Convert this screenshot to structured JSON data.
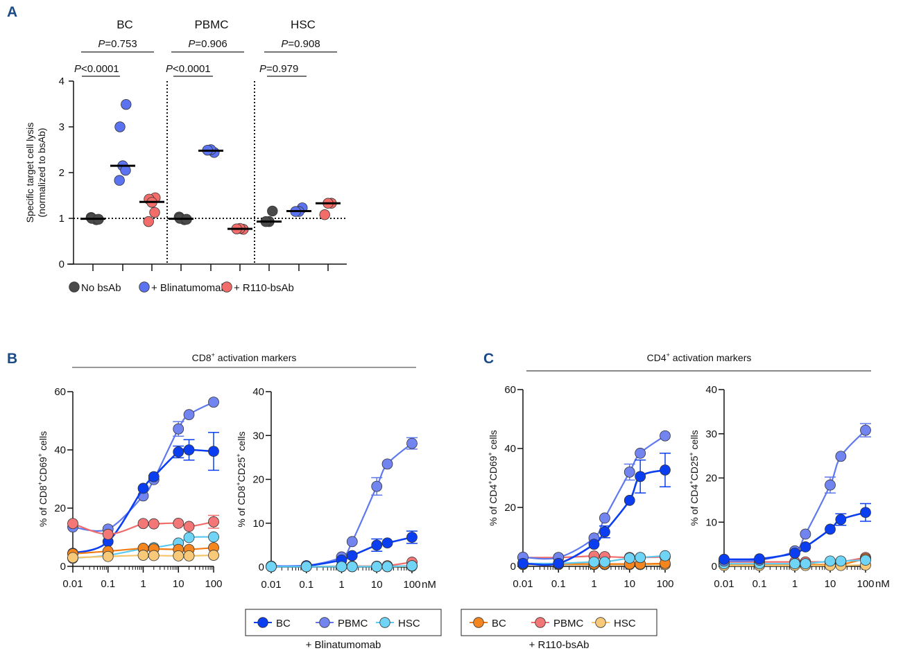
{
  "figure": {
    "panel_labels": [
      "A",
      "B",
      "C"
    ]
  },
  "chart_data": [
    {
      "panel": "A",
      "type": "scatter",
      "subtype": "dot-plot-with-median",
      "ylabel_line1": "Specific target cell lysis",
      "ylabel_line2": "(normalized to bsAb)",
      "ylim": [
        0,
        4
      ],
      "yticks": [
        "0",
        "1",
        "2",
        "3",
        "4"
      ],
      "reference_line": 1,
      "groups": [
        {
          "title": "BC",
          "p_top": {
            "label": "P",
            "value": "=0.753"
          },
          "p_bottom": {
            "label": "P",
            "value": "<0.0001"
          },
          "conditions": [
            {
              "name": "No bsAb",
              "points": [
                0.97,
                1.02,
                1.0,
                0.98
              ],
              "median": 0.99
            },
            {
              "name": "+ Blinatumomab",
              "points": [
                3.49,
                3.0,
                2.15,
                2.05,
                1.83
              ],
              "median": 2.15
            },
            {
              "name": "+ R110-bsAb",
              "points": [
                1.45,
                1.42,
                1.35,
                1.13,
                0.93
              ],
              "median": 1.36
            }
          ]
        },
        {
          "title": "PBMC",
          "p_top": {
            "label": "P",
            "value": "=0.906"
          },
          "p_bottom": {
            "label": "P",
            "value": "<0.0001"
          },
          "conditions": [
            {
              "name": "No bsAb",
              "points": [
                0.97,
                1.03,
                1.0,
                0.98
              ],
              "median": 0.99
            },
            {
              "name": "+ Blinatumomab",
              "points": [
                2.44,
                2.5,
                2.49
              ],
              "median": 2.48
            },
            {
              "name": "+ R110-bsAb",
              "points": [
                0.76,
                0.78,
                0.77
              ],
              "median": 0.77
            }
          ]
        },
        {
          "title": "HSC",
          "p_top": {
            "label": "P",
            "value": "=0.908"
          },
          "p_bottom": {
            "label": "P",
            "value": "=0.979"
          },
          "conditions": [
            {
              "name": "No bsAb",
              "points": [
                1.16,
                0.93,
                0.93
              ],
              "median": 0.93
            },
            {
              "name": "+ Blinatumomab",
              "points": [
                1.23,
                1.15,
                1.15
              ],
              "median": 1.16
            },
            {
              "name": "+ R110-bsAb",
              "points": [
                1.33,
                1.33,
                1.08
              ],
              "median": 1.33
            }
          ]
        }
      ],
      "legend": [
        {
          "name": "No bsAb",
          "color": "#4a4a4a"
        },
        {
          "name": "+ Blinatumomab",
          "color": "#5b73f0"
        },
        {
          "name": "+ R110-bsAb",
          "color": "#f26d6a"
        }
      ],
      "legend_position": "bottom"
    },
    {
      "panel": "B",
      "header": {
        "prefix": "CD8",
        "sup": "+",
        "suffix": " activation markers"
      },
      "charts": [
        {
          "type": "line",
          "xscale": "log",
          "x": [
            0.01,
            0.1,
            1,
            2,
            10,
            20,
            100
          ],
          "xticks": [
            "0.01",
            "0.1",
            "1",
            "10",
            "100"
          ],
          "xunit": "",
          "ylabel_parts": [
            "% of CD8",
            "+",
            "CD69",
            "+",
            " cells"
          ],
          "ylim": [
            0,
            60
          ],
          "yticks": [
            "0",
            "20",
            "40",
            "60"
          ],
          "series": [
            {
              "key": "blin_pbmc",
              "values": [
                13.5,
                12.8,
                24.2,
                29.8,
                47.2,
                52.1,
                56.4
              ],
              "err": [
                0,
                0,
                0,
                0,
                2.5,
                0,
                0
              ]
            },
            {
              "key": "blin_bc",
              "values": [
                4.5,
                8.5,
                26.8,
                30.8,
                39.3,
                40.0,
                39.5
              ],
              "err": [
                0,
                0,
                0,
                0,
                2.0,
                3.5,
                6.5
              ]
            },
            {
              "key": "r110_pbmc",
              "values": [
                14.7,
                11.0,
                14.7,
                14.6,
                14.8,
                13.7,
                15.3
              ],
              "err": [
                0,
                0,
                0,
                0,
                0,
                0,
                2.2
              ]
            },
            {
              "key": "blin_hsc",
              "values": [
                2.8,
                3.8,
                6.1,
                6.4,
                8.0,
                9.9,
                10.1
              ],
              "err": [
                0,
                0,
                0,
                0,
                0,
                0,
                0
              ]
            },
            {
              "key": "r110_bc",
              "values": [
                4.3,
                5.2,
                6.2,
                6.0,
                5.8,
                5.8,
                6.4
              ],
              "err": [
                0,
                0,
                0,
                0,
                0,
                0,
                0
              ]
            },
            {
              "key": "r110_hsc",
              "values": [
                3.0,
                3.4,
                3.8,
                3.7,
                3.6,
                3.6,
                3.8
              ],
              "err": [
                0,
                0,
                0,
                0,
                0,
                0,
                0
              ]
            }
          ]
        },
        {
          "type": "line",
          "xscale": "log",
          "x": [
            0.01,
            0.1,
            1,
            2,
            10,
            20,
            100
          ],
          "xticks": [
            "0.01",
            "0.1",
            "1",
            "10",
            "100"
          ],
          "xunit": "nM",
          "ylabel_parts": [
            "% of CD8",
            "+",
            "CD25",
            "+",
            " cells"
          ],
          "ylim": [
            0,
            40
          ],
          "yticks": [
            "0",
            "10",
            "20",
            "30",
            "40"
          ],
          "series": [
            {
              "key": "r110_pbmc",
              "values": [
                0.1,
                0.1,
                0.2,
                0.2,
                0.2,
                0.3,
                1.1
              ],
              "err": [
                0,
                0,
                0,
                0,
                0,
                0,
                0
              ]
            },
            {
              "key": "r110_bc",
              "values": [
                0.1,
                0.1,
                0.1,
                0.1,
                0.1,
                0.1,
                0.3
              ],
              "err": [
                0,
                0,
                0,
                0,
                0,
                0,
                0
              ]
            },
            {
              "key": "r110_hsc",
              "values": [
                0.1,
                0.1,
                0.1,
                0.1,
                0.1,
                0.1,
                0.2
              ],
              "err": [
                0,
                0,
                0,
                0,
                0,
                0,
                0
              ]
            },
            {
              "key": "blin_pbmc",
              "values": [
                0.2,
                0.3,
                2.3,
                5.8,
                18.4,
                23.5,
                28.2
              ],
              "err": [
                0,
                0,
                0,
                0,
                2.0,
                0,
                1.3
              ]
            },
            {
              "key": "blin_bc",
              "values": [
                0.2,
                0.3,
                1.6,
                2.6,
                5.0,
                5.5,
                6.8
              ],
              "err": [
                0,
                0,
                0,
                0,
                1.4,
                0,
                1.4
              ]
            },
            {
              "key": "blin_hsc",
              "values": [
                0.1,
                0.1,
                0.1,
                0.1,
                0.1,
                0.1,
                0.3
              ],
              "err": [
                0,
                0,
                0,
                0,
                0,
                0,
                0
              ]
            }
          ]
        }
      ]
    },
    {
      "panel": "C",
      "header": {
        "prefix": "CD4",
        "sup": "+",
        "suffix": " activation markers"
      },
      "charts": [
        {
          "type": "line",
          "xscale": "log",
          "x": [
            0.01,
            0.1,
            1,
            2,
            10,
            20,
            100
          ],
          "xticks": [
            "0.01",
            "0.1",
            "1",
            "10",
            "100"
          ],
          "xunit": "",
          "ylabel_parts": [
            "% of CD4",
            "+",
            "CD69",
            "+",
            " cells"
          ],
          "ylim": [
            0,
            60
          ],
          "yticks": [
            "0",
            "20",
            "40",
            "60"
          ],
          "series": [
            {
              "key": "r110_pbmc",
              "values": [
                3.0,
                3.0,
                3.5,
                3.3,
                3.0,
                3.0,
                3.2
              ],
              "err": [
                0,
                0,
                0,
                0,
                0,
                0,
                0
              ]
            },
            {
              "key": "r110_hsc",
              "values": [
                0.6,
                0.6,
                0.6,
                0.6,
                0.6,
                0.6,
                0.6
              ],
              "err": [
                0,
                0,
                0,
                0,
                0,
                0,
                0
              ]
            },
            {
              "key": "r110_bc",
              "values": [
                0.8,
                0.8,
                0.8,
                0.8,
                0.8,
                0.8,
                1.0
              ],
              "err": [
                0,
                0,
                0,
                0,
                0,
                0,
                0
              ]
            },
            {
              "key": "blin_hsc",
              "values": [
                1.0,
                1.0,
                1.5,
                1.5,
                2.8,
                3.0,
                3.6
              ],
              "err": [
                0,
                0,
                0,
                0,
                0,
                0,
                0
              ]
            },
            {
              "key": "blin_pbmc",
              "values": [
                3.1,
                3.0,
                9.6,
                16.4,
                32.0,
                38.4,
                44.3
              ],
              "err": [
                0,
                0,
                0,
                0,
                2.7,
                0,
                0
              ]
            },
            {
              "key": "blin_bc",
              "values": [
                1.0,
                1.0,
                7.5,
                11.7,
                22.4,
                30.5,
                32.7
              ],
              "err": [
                0,
                0,
                0,
                2.0,
                0,
                5.6,
                5.7
              ]
            }
          ]
        },
        {
          "type": "line",
          "xscale": "log",
          "x": [
            0.01,
            0.1,
            1,
            2,
            10,
            20,
            100
          ],
          "xticks": [
            "0.01",
            "0.1",
            "1",
            "10",
            "100"
          ],
          "xunit": "nM",
          "ylabel_parts": [
            "% of CD4",
            "+",
            "CD25",
            "+",
            " cells"
          ],
          "ylim": [
            0,
            40
          ],
          "yticks": [
            "0",
            "10",
            "20",
            "30",
            "40"
          ],
          "series": [
            {
              "key": "r110_pbmc",
              "values": [
                1.0,
                1.0,
                1.0,
                1.0,
                1.0,
                1.0,
                2.0
              ],
              "err": [
                0,
                0,
                0,
                0,
                0,
                0,
                0
              ]
            },
            {
              "key": "r110_bc",
              "values": [
                0.4,
                0.4,
                0.4,
                0.4,
                0.4,
                0.4,
                1.7
              ],
              "err": [
                0,
                0,
                0,
                0,
                0,
                0,
                0
              ]
            },
            {
              "key": "r110_hsc",
              "values": [
                0.2,
                0.2,
                0.2,
                0.2,
                0.2,
                0.2,
                0.3
              ],
              "err": [
                0,
                0,
                0,
                0,
                0,
                0,
                0
              ]
            },
            {
              "key": "blin_hsc",
              "values": [
                0.6,
                0.6,
                0.6,
                0.6,
                1.2,
                1.2,
                1.4
              ],
              "err": [
                0,
                0,
                0,
                0,
                0,
                0,
                0
              ]
            },
            {
              "key": "blin_pbmc",
              "values": [
                1.2,
                1.4,
                3.5,
                7.3,
                18.4,
                24.9,
                30.8
              ],
              "err": [
                0,
                0,
                0,
                0,
                1.8,
                0,
                1.5
              ]
            },
            {
              "key": "blin_bc",
              "values": [
                1.6,
                1.7,
                3.0,
                4.4,
                8.4,
                10.6,
                12.2
              ],
              "err": [
                0,
                0,
                0,
                0,
                0,
                1.3,
                2.0
              ]
            }
          ]
        }
      ],
      "legends": [
        {
          "caption": "+ Blinatumomab",
          "entries": [
            {
              "key": "blin_bc",
              "name": "BC"
            },
            {
              "key": "blin_pbmc",
              "name": "PBMC"
            },
            {
              "key": "blin_hsc",
              "name": "HSC"
            }
          ]
        },
        {
          "caption": "+ R110-bsAb",
          "entries": [
            {
              "key": "r110_bc",
              "name": "BC"
            },
            {
              "key": "r110_pbmc",
              "name": "PBMC"
            },
            {
              "key": "r110_hsc",
              "name": "HSC"
            }
          ]
        }
      ]
    }
  ],
  "series_styles": {
    "blin_bc": {
      "fill": "#0a3ef0",
      "line": "#0a3ef0"
    },
    "blin_pbmc": {
      "fill": "#7284f0",
      "line": "#5e78f0"
    },
    "blin_hsc": {
      "fill": "#6fd4f5",
      "line": "#5ccaf0"
    },
    "r110_bc": {
      "fill": "#f5861f",
      "line": "#f27a0f"
    },
    "r110_pbmc": {
      "fill": "#f27776",
      "line": "#f06b6b"
    },
    "r110_hsc": {
      "fill": "#f8c978",
      "line": "#f5c46a"
    }
  }
}
